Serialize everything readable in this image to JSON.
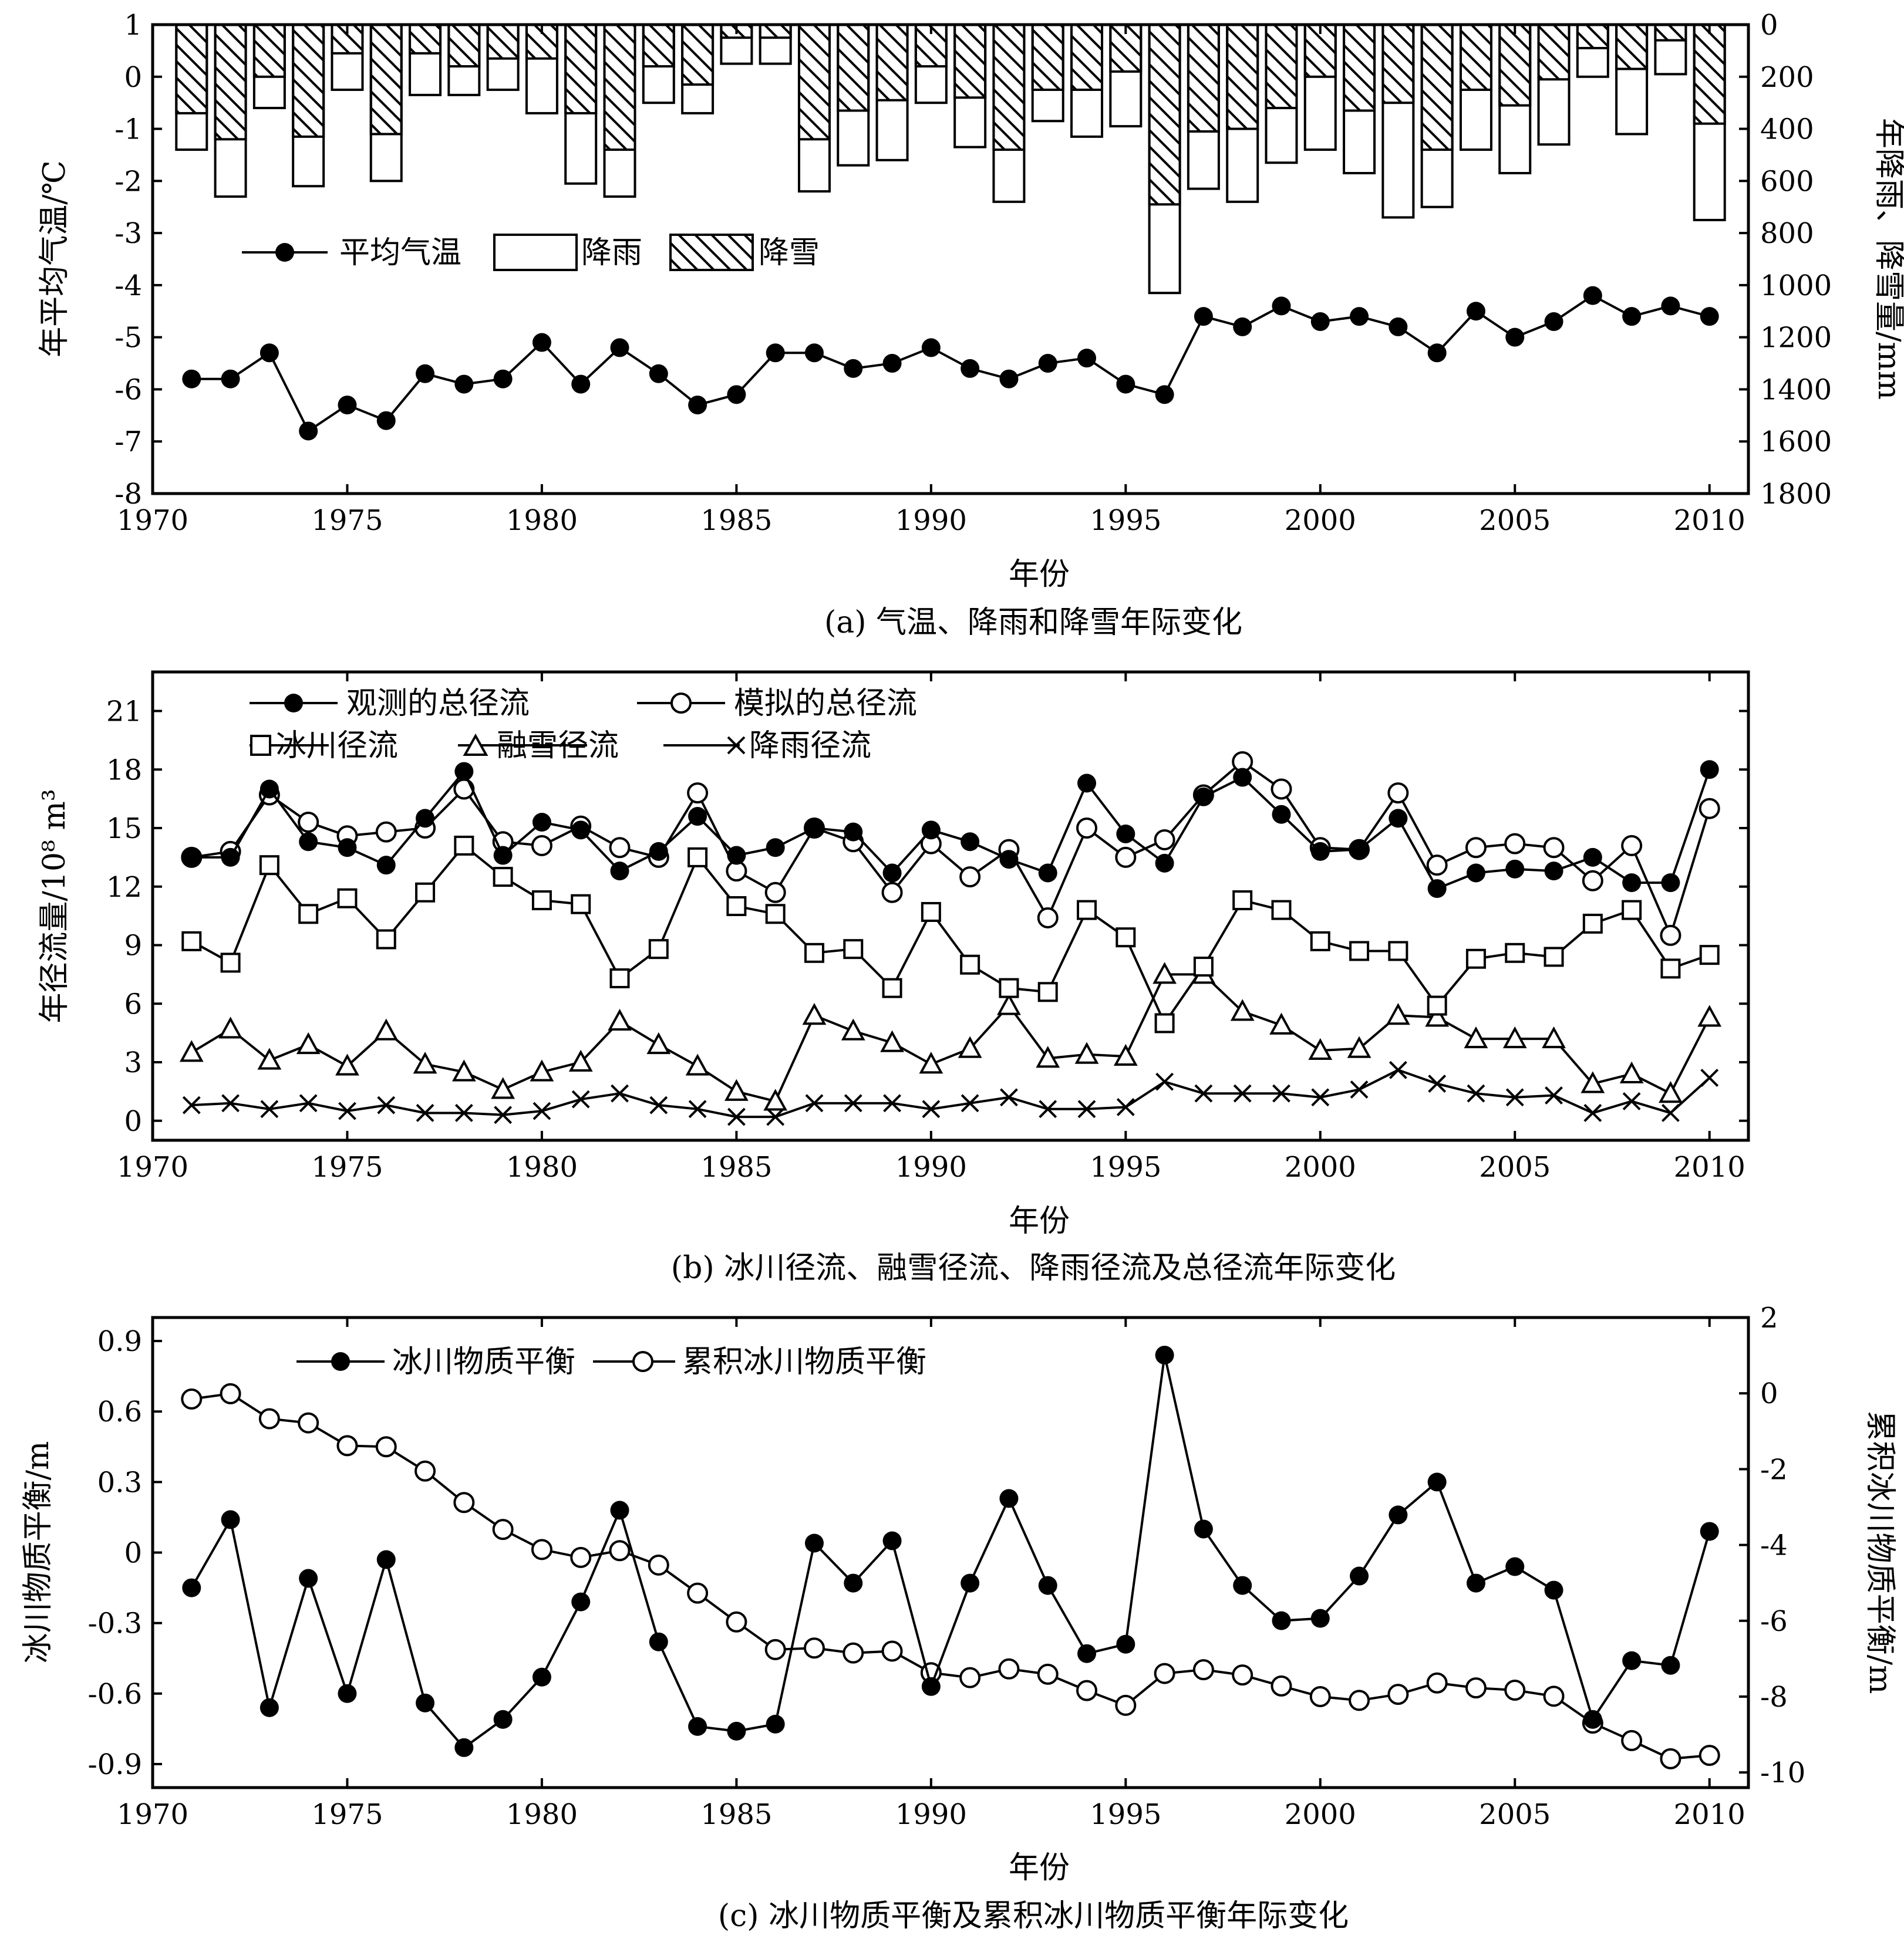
{
  "chart_data": [
    {
      "type": "bar+line",
      "caption": "(a) 气温、降雨和降雪年际变化",
      "xlabel": "年份",
      "ylabel_left": "年平均气温/℃",
      "ylabel_right": "年降雨、降雪量/mm",
      "xlim": [
        1970,
        2011
      ],
      "xticks": [
        "1970",
        "1975",
        "1980",
        "1985",
        "1990",
        "1995",
        "2000",
        "2005",
        "2010"
      ],
      "ylim_left": [
        -8,
        1
      ],
      "yticks_left": [
        "1",
        "0",
        "-1",
        "-2",
        "-3",
        "-4",
        "-5",
        "-6",
        "-7",
        "-8"
      ],
      "ylim_right_inverted": [
        0,
        1800
      ],
      "yticks_right": [
        "0",
        "200",
        "400",
        "600",
        "800",
        "1000",
        "1200",
        "1400",
        "1600",
        "1800"
      ],
      "legend": [
        "平均气温",
        "降雨",
        "降雪"
      ],
      "years": [
        1971,
        1972,
        1973,
        1974,
        1975,
        1976,
        1977,
        1978,
        1979,
        1980,
        1981,
        1982,
        1983,
        1984,
        1985,
        1986,
        1987,
        1988,
        1989,
        1990,
        1991,
        1992,
        1993,
        1994,
        1995,
        1996,
        1997,
        1998,
        1999,
        2000,
        2001,
        2002,
        2003,
        2004,
        2005,
        2006,
        2007,
        2008,
        2009,
        2010
      ],
      "temperature": [
        -5.8,
        -5.8,
        -5.3,
        -6.8,
        -6.3,
        -6.6,
        -5.7,
        -5.9,
        -5.8,
        -5.1,
        -5.9,
        -5.2,
        -5.7,
        -6.3,
        -6.1,
        -5.3,
        -5.3,
        -5.6,
        -5.5,
        -5.2,
        -5.6,
        -5.8,
        -5.5,
        -5.4,
        -5.9,
        -6.1,
        -4.6,
        -4.8,
        -4.4,
        -4.7,
        -4.6,
        -4.8,
        -5.3,
        -4.5,
        -5.0,
        -4.7,
        -4.2,
        -4.6,
        -4.4,
        -4.6
      ],
      "snowfall_mm": [
        340,
        440,
        200,
        430,
        110,
        420,
        110,
        160,
        130,
        130,
        340,
        480,
        160,
        230,
        50,
        50,
        440,
        330,
        290,
        160,
        280,
        480,
        250,
        250,
        180,
        690,
        410,
        400,
        320,
        200,
        330,
        300,
        480,
        250,
        310,
        210,
        90,
        170,
        60,
        380
      ],
      "total_precip_mm": [
        480,
        660,
        320,
        620,
        250,
        600,
        270,
        270,
        250,
        340,
        610,
        660,
        300,
        340,
        150,
        150,
        640,
        540,
        520,
        300,
        470,
        680,
        370,
        430,
        390,
        1030,
        630,
        680,
        530,
        480,
        570,
        740,
        700,
        480,
        570,
        460,
        200,
        420,
        190,
        750
      ]
    },
    {
      "type": "line",
      "caption": "(b) 冰川径流、融雪径流、降雨径流及总径流年际变化",
      "xlabel": "年份",
      "ylabel": "年径流量/10⁸ m³",
      "xlim": [
        1970,
        2011
      ],
      "ylim": [
        -1,
        23
      ],
      "xticks": [
        "1970",
        "1975",
        "1980",
        "1985",
        "1990",
        "1995",
        "2000",
        "2005",
        "2010"
      ],
      "yticks": [
        "0",
        "3",
        "6",
        "9",
        "12",
        "15",
        "18",
        "21"
      ],
      "years": [
        1971,
        1972,
        1973,
        1974,
        1975,
        1976,
        1977,
        1978,
        1979,
        1980,
        1981,
        1982,
        1983,
        1984,
        1985,
        1986,
        1987,
        1988,
        1989,
        1990,
        1991,
        1992,
        1993,
        1994,
        1995,
        1996,
        1997,
        1998,
        1999,
        2000,
        2001,
        2002,
        2003,
        2004,
        2005,
        2006,
        2007,
        2008,
        2009,
        2010
      ],
      "series": [
        {
          "name": "观测的总径流",
          "marker": "filled-circle",
          "values": [
            13.5,
            13.5,
            17.0,
            14.3,
            14.0,
            13.1,
            15.5,
            17.9,
            13.6,
            15.3,
            14.9,
            12.8,
            13.8,
            15.6,
            13.6,
            14.0,
            15.0,
            14.8,
            12.7,
            14.9,
            14.3,
            13.4,
            12.7,
            17.3,
            14.7,
            13.2,
            16.6,
            17.6,
            15.7,
            13.8,
            13.9,
            15.5,
            11.9,
            12.7,
            12.9,
            12.8,
            13.5,
            12.2,
            12.2,
            18.0
          ]
        },
        {
          "name": "模拟的总径流",
          "marker": "open-circle",
          "values": [
            13.5,
            13.8,
            16.7,
            15.3,
            14.6,
            14.8,
            15.0,
            17.0,
            14.3,
            14.1,
            15.1,
            14.0,
            13.5,
            16.8,
            12.8,
            11.7,
            15.0,
            14.3,
            11.7,
            14.2,
            12.5,
            13.9,
            10.4,
            15.0,
            13.5,
            14.4,
            16.7,
            18.4,
            17.0,
            14.0,
            13.9,
            16.8,
            13.1,
            14.0,
            14.2,
            14.0,
            12.3,
            14.1,
            9.5,
            16.0
          ]
        },
        {
          "name": "冰川径流",
          "marker": "open-square",
          "values": [
            9.2,
            8.1,
            13.1,
            10.6,
            11.4,
            9.3,
            11.7,
            14.1,
            12.5,
            11.3,
            11.1,
            7.3,
            8.8,
            13.5,
            11.0,
            10.6,
            8.6,
            8.8,
            6.8,
            10.7,
            8.0,
            6.8,
            6.6,
            10.8,
            9.4,
            5.0,
            7.9,
            11.3,
            10.8,
            9.2,
            8.7,
            8.7,
            5.9,
            8.3,
            8.6,
            8.4,
            10.1,
            10.8,
            7.8,
            8.5
          ]
        },
        {
          "name": "融雪径流",
          "marker": "open-triangle",
          "values": [
            3.5,
            4.7,
            3.1,
            3.9,
            2.8,
            4.6,
            2.9,
            2.5,
            1.6,
            2.5,
            3.0,
            5.1,
            3.9,
            2.8,
            1.5,
            1.0,
            5.4,
            4.6,
            4.0,
            2.9,
            3.7,
            5.9,
            3.2,
            3.4,
            3.3,
            7.5,
            7.5,
            5.6,
            4.9,
            3.6,
            3.7,
            5.4,
            5.3,
            4.2,
            4.2,
            4.2,
            1.9,
            2.4,
            1.4,
            5.3
          ]
        },
        {
          "name": "降雨径流",
          "marker": "cross",
          "values": [
            0.8,
            0.9,
            0.6,
            0.9,
            0.5,
            0.8,
            0.4,
            0.4,
            0.3,
            0.5,
            1.1,
            1.4,
            0.8,
            0.6,
            0.2,
            0.2,
            0.9,
            0.9,
            0.9,
            0.6,
            0.9,
            1.2,
            0.6,
            0.6,
            0.7,
            2.0,
            1.4,
            1.4,
            1.4,
            1.2,
            1.6,
            2.6,
            1.9,
            1.4,
            1.2,
            1.3,
            0.4,
            1.0,
            0.4,
            2.2
          ]
        }
      ]
    },
    {
      "type": "line",
      "caption": "(c) 冰川物质平衡及累积冰川物质平衡年际变化",
      "xlabel": "年份",
      "ylabel_left": "冰川物质平衡/m",
      "ylabel_right": "累积冰川物质平衡/m",
      "xlim": [
        1970,
        2011
      ],
      "ylim_left": [
        -1.0,
        1.0
      ],
      "ylim_right": [
        -10.4,
        2.0
      ],
      "xticks": [
        "1970",
        "1975",
        "1980",
        "1985",
        "1990",
        "1995",
        "2000",
        "2005",
        "2010"
      ],
      "yticks_left": [
        "0.9",
        "0.6",
        "0.3",
        "0",
        "-0.3",
        "-0.6",
        "-0.9"
      ],
      "yticks_right": [
        "2",
        "0",
        "-2",
        "-4",
        "-6",
        "-8",
        "-10"
      ],
      "years": [
        1971,
        1972,
        1973,
        1974,
        1975,
        1976,
        1977,
        1978,
        1979,
        1980,
        1981,
        1982,
        1983,
        1984,
        1985,
        1986,
        1987,
        1988,
        1989,
        1990,
        1991,
        1992,
        1993,
        1994,
        1995,
        1996,
        1997,
        1998,
        1999,
        2000,
        2001,
        2002,
        2003,
        2004,
        2005,
        2006,
        2007,
        2008,
        2009,
        2010
      ],
      "series": [
        {
          "name": "冰川物质平衡",
          "axis": "left",
          "marker": "filled-circle",
          "values": [
            -0.15,
            0.14,
            -0.66,
            -0.11,
            -0.6,
            -0.03,
            -0.64,
            -0.83,
            -0.71,
            -0.53,
            -0.21,
            0.18,
            -0.38,
            -0.74,
            -0.76,
            -0.73,
            0.04,
            -0.13,
            0.05,
            -0.57,
            -0.13,
            0.23,
            -0.14,
            -0.43,
            -0.39,
            0.84,
            0.1,
            -0.14,
            -0.29,
            -0.28,
            -0.1,
            0.16,
            0.3,
            -0.13,
            -0.06,
            -0.16,
            -0.71,
            -0.46,
            -0.48,
            0.09
          ]
        },
        {
          "name": "累积冰川物质平衡",
          "axis": "right",
          "marker": "open-circle",
          "values": [
            -0.15,
            -0.01,
            -0.67,
            -0.78,
            -1.38,
            -1.41,
            -2.05,
            -2.88,
            -3.59,
            -4.12,
            -4.33,
            -4.15,
            -4.53,
            -5.27,
            -6.03,
            -6.76,
            -6.72,
            -6.85,
            -6.8,
            -7.37,
            -7.5,
            -7.27,
            -7.41,
            -7.84,
            -8.23,
            -7.39,
            -7.29,
            -7.43,
            -7.72,
            -8.0,
            -8.1,
            -7.94,
            -7.64,
            -7.77,
            -7.83,
            -7.99,
            -8.7,
            -9.16,
            -9.64,
            -9.55
          ]
        }
      ]
    }
  ]
}
